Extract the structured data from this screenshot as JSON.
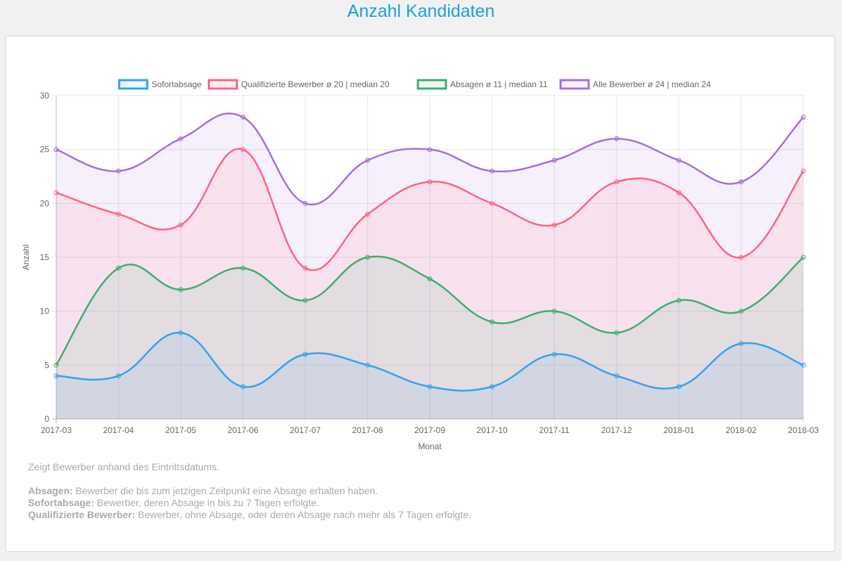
{
  "title": "Anzahl Kandidaten",
  "chart_data": {
    "type": "line",
    "title": "Anzahl Kandidaten",
    "xlabel": "Monat",
    "ylabel": "Anzahl",
    "ylim": [
      0,
      30
    ],
    "y_ticks": [
      0,
      5,
      10,
      15,
      20,
      25,
      30
    ],
    "grid": true,
    "legend_position": "top",
    "x": [
      "2017-03",
      "2017-04",
      "2017-05",
      "2017-06",
      "2017-07",
      "2017-08",
      "2017-09",
      "2017-10",
      "2017-11",
      "2017-12",
      "2018-01",
      "2018-02",
      "2018-03"
    ],
    "series": [
      {
        "name": "Sofortabsage",
        "color": "#36a2eb",
        "fill": "rgba(54,162,235,0.10)",
        "values": [
          4,
          4,
          8,
          3,
          6,
          5,
          3,
          3,
          6,
          4,
          3,
          7,
          5
        ]
      },
      {
        "name": "Qualifizierte Bewerber ø 20 | median 20",
        "color": "#ff6384",
        "fill": "rgba(255,99,132,0.10)",
        "values": [
          21,
          19,
          18,
          25,
          14,
          19,
          22,
          20,
          18,
          22,
          21,
          15,
          23
        ]
      },
      {
        "name": "Absagen ø 11 | median 11",
        "color": "#3fae6e",
        "fill": "rgba(63,174,110,0.10)",
        "values": [
          5,
          14,
          12,
          14,
          11,
          15,
          13,
          9,
          10,
          8,
          11,
          10,
          15
        ]
      },
      {
        "name": "Alle Bewerber ø 24 | median 24",
        "color": "#a66ee0",
        "fill": "rgba(166,110,224,0.10)",
        "values": [
          25,
          23,
          26,
          28,
          20,
          24,
          25,
          23,
          24,
          26,
          24,
          22,
          28
        ]
      }
    ]
  },
  "description": {
    "intro": "Zeigt Bewerber anhand des Eintrittsdatums.",
    "items": [
      {
        "term": "Absagen:",
        "text": " Bewerber die bis zum jetzigen Zeitpunkt eine Absage erhalten haben."
      },
      {
        "term": "Sofortabsage:",
        "text": " Bewerber, deren Absage in bis zu 7 Tagen erfolgte."
      },
      {
        "term": "Qualifizierte Bewerber:",
        "text": " Bewerber, ohne Absage, oder deren Absage nach mehr als 7 Tagen erfolgte."
      }
    ]
  }
}
